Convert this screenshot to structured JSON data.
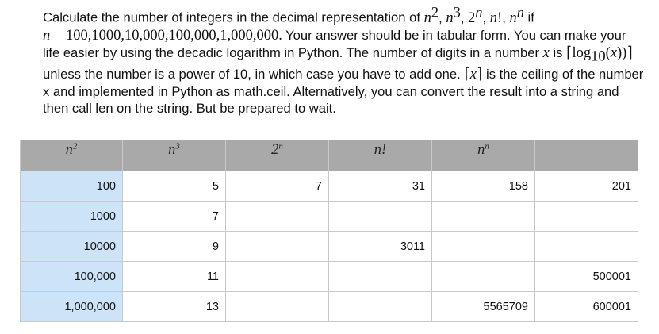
{
  "problem": {
    "line1_prefix": "Calculate the number of integers in the decimal representation of ",
    "line1_suffix": " if",
    "n_values": "100,1000,10,000,100,000,1,000,000.",
    "line2_rest": " Your answer should be in tabular form. You can make your life easier by using the decadic logarithm in Python. The number of digits in a number ",
    "is_text": " is ",
    "unless_text": " unless the number is a power of 10, in which case you have to add one. ",
    "ceil_text": " is the ceiling of the number x and implemented in Python as math.ceil. Alternatively, you can convert the result into a string and then call len on the string. But be prepared to wait."
  },
  "table": {
    "rows": [
      {
        "n": "100",
        "c": [
          "5",
          "7",
          "31",
          "158",
          "201"
        ]
      },
      {
        "n": "1000",
        "c": [
          "7",
          "",
          "",
          "",
          ""
        ]
      },
      {
        "n": "10000",
        "c": [
          "9",
          "",
          "3011",
          "",
          ""
        ]
      },
      {
        "n": "100,000",
        "c": [
          "11",
          "",
          "",
          "",
          "500001"
        ]
      },
      {
        "n": "1,000,000",
        "c": [
          "13",
          "",
          "",
          "5565709",
          "600001"
        ]
      }
    ]
  }
}
